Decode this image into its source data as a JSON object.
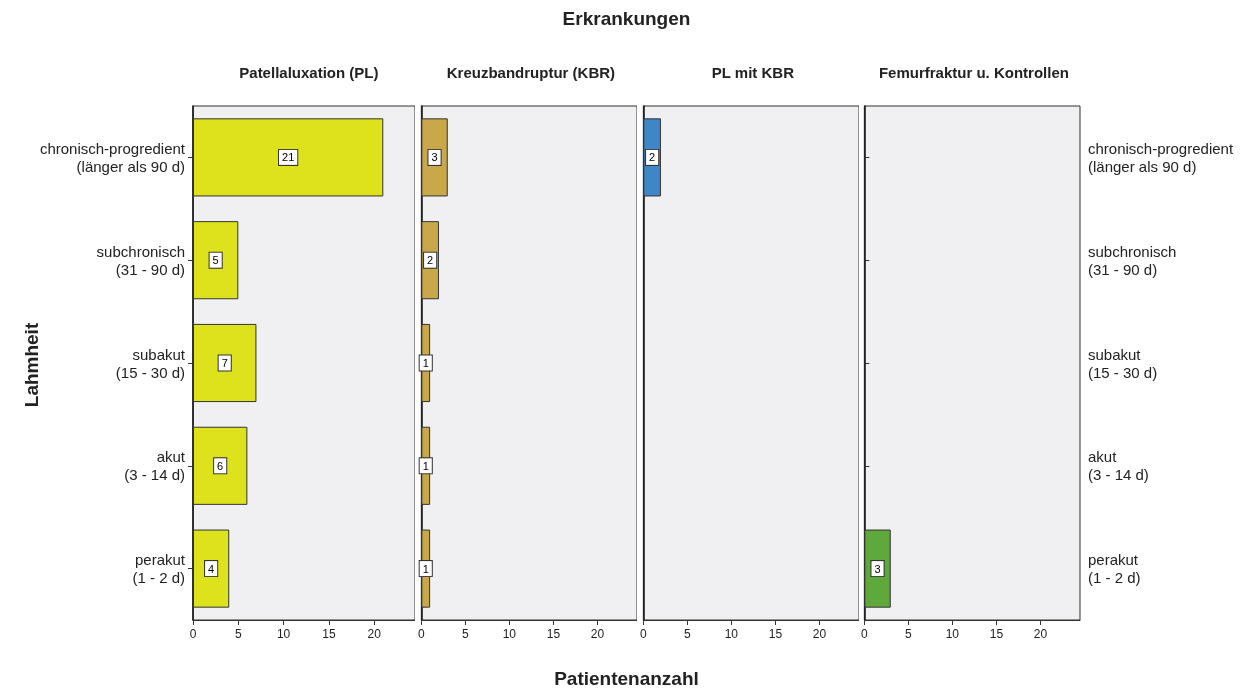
{
  "chart_data": [
    {
      "type": "bar",
      "subtitle": "Patellaluxation (PL)",
      "ylabel": "Lahmheit",
      "orientation": "horizontal",
      "categories": [
        "chronisch-progredient\n(länger als 90 d)",
        "subchronisch\n(31 - 90 d)",
        "subakut\n(15 - 30 d)",
        "akut\n(3 - 14 d)",
        "perakut\n(1 - 2 d)"
      ],
      "values": [
        21,
        5,
        7,
        6,
        4
      ],
      "color": "#dde21c",
      "xlim": [
        0,
        24.5
      ],
      "xticks": [
        0,
        5,
        10,
        15,
        20
      ],
      "data_labels": true
    },
    {
      "type": "bar",
      "title": "Erkrankungen",
      "subtitle": "Kreuzbandruptur (KBR)",
      "xlabel": "Patientenanzahl",
      "orientation": "horizontal",
      "categories": [
        null,
        null,
        null,
        null,
        null
      ],
      "values": [
        3,
        2,
        1,
        1,
        1
      ],
      "color": "#c9a84a",
      "xlim": [
        0,
        24.5
      ],
      "xticks": [
        0,
        5,
        10,
        15,
        20
      ],
      "data_labels": true,
      "tick_labels": "x"
    },
    {
      "type": "bar",
      "subtitle": "PL mit KBR",
      "orientation": "horizontal",
      "categories": [
        null,
        null,
        null,
        null,
        null
      ],
      "values": [
        2,
        null,
        null,
        null,
        null
      ],
      "color": "#3f86c8",
      "xlim": [
        0,
        24.5
      ],
      "xticks": [
        0,
        5,
        10,
        15,
        20
      ],
      "data_labels": true,
      "tick_labels": "x"
    },
    {
      "type": "bar",
      "subtitle": "Femurfraktur u. Kontrollen",
      "orientation": "horizontal",
      "categories": [
        "chronisch-progredient\n(länger als 90 d)",
        "subchronisch\n(31 - 90 d)",
        "subakut\n(15 - 30 d)",
        "akut\n(3 - 14 d)",
        "perakut\n(1 - 2 d)"
      ],
      "values": [
        null,
        null,
        null,
        null,
        3
      ],
      "color": "#5fa83c",
      "xlim": [
        0,
        24.5
      ],
      "xticks": [
        0,
        5,
        10,
        15,
        20
      ],
      "data_labels": true
    }
  ]
}
